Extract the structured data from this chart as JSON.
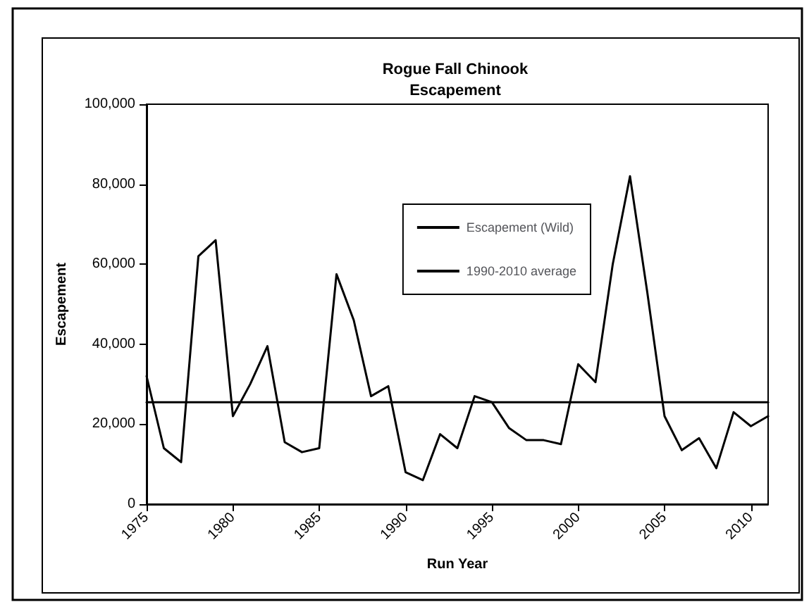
{
  "chart_data": {
    "type": "line",
    "title": "Rogue Fall Chinook\nEscapement",
    "xlabel": "Run Year",
    "ylabel": "Escapement",
    "x": [
      1975,
      1976,
      1977,
      1978,
      1979,
      1980,
      1981,
      1982,
      1983,
      1984,
      1985,
      1986,
      1987,
      1988,
      1989,
      1990,
      1991,
      1992,
      1993,
      1994,
      1995,
      1996,
      1997,
      1998,
      1999,
      2000,
      2001,
      2002,
      2003,
      2004,
      2005,
      2006,
      2007,
      2008,
      2009,
      2010,
      2011
    ],
    "series": [
      {
        "name": "Escapement (Wild)",
        "color": "#000000",
        "values": [
          32000,
          14000,
          10500,
          62000,
          66000,
          22000,
          30000,
          39500,
          15500,
          13000,
          14000,
          57500,
          46000,
          27000,
          29500,
          8000,
          6000,
          17500,
          14000,
          27000,
          25500,
          19000,
          16000,
          16000,
          15000,
          35000,
          30500,
          60000,
          82000,
          53000,
          22000,
          13500,
          16500,
          9000,
          23000,
          19500,
          22000
        ]
      },
      {
        "name": "1990-2010 average",
        "color": "#000000",
        "x": [
          1975,
          2011
        ],
        "values": [
          25500,
          25500
        ]
      }
    ],
    "xlim": [
      1975,
      2011
    ],
    "xticks": [
      1975,
      1980,
      1985,
      1990,
      1995,
      2000,
      2005,
      2010
    ],
    "ylim": [
      0,
      100000
    ],
    "yticks": [
      0,
      {
        "value": 20000,
        "label": "20,000"
      },
      {
        "value": 40000,
        "label": "40,000"
      },
      {
        "value": 60000,
        "label": "60,000"
      },
      {
        "value": 80000,
        "label": "80,000"
      },
      {
        "value": 100000,
        "label": "100,000"
      }
    ],
    "grid": false,
    "legend": "top right",
    "marker": "none",
    "line_style": "solid"
  }
}
